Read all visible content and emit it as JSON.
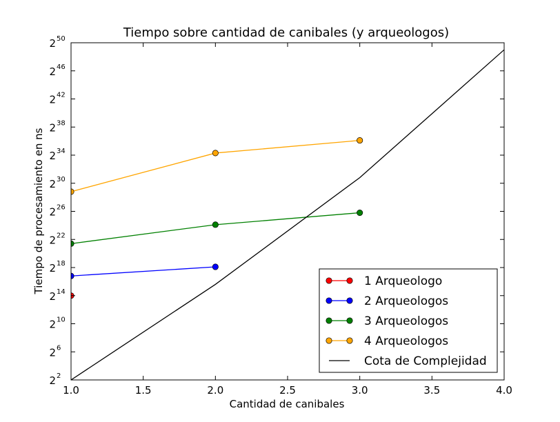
{
  "chart_data": {
    "type": "line",
    "title": "Tiempo sobre cantidad de canibales (y arqueologos)",
    "xlabel": "Cantidad de canibales",
    "ylabel": "Tiempo de procesamiento en ns",
    "y_scale": "log2",
    "xlim": [
      1.0,
      4.0
    ],
    "ylim_exponent": [
      2,
      50
    ],
    "x_ticks": [
      "1.0",
      "1.5",
      "2.0",
      "2.5",
      "3.0",
      "3.5",
      "4.0"
    ],
    "x_tick_values": [
      1.0,
      1.5,
      2.0,
      2.5,
      3.0,
      3.5,
      4.0
    ],
    "y_tick_base": "2",
    "y_tick_exponents": [
      "2",
      "6",
      "10",
      "14",
      "18",
      "22",
      "26",
      "30",
      "34",
      "38",
      "42",
      "46",
      "50"
    ],
    "grid": false,
    "legend_position": "lower-right",
    "series": [
      {
        "name": "1 Arqueologo",
        "color": "#ff0000",
        "marker": "circle",
        "x": [
          1.0
        ],
        "y_exponent": [
          14.0
        ]
      },
      {
        "name": "2 Arqueologos",
        "color": "#0000ff",
        "marker": "circle",
        "x": [
          1.0,
          2.0
        ],
        "y_exponent": [
          16.8,
          18.1
        ]
      },
      {
        "name": "3 Arqueologos",
        "color": "#008000",
        "marker": "circle",
        "x": [
          1.0,
          2.0,
          3.0
        ],
        "y_exponent": [
          21.4,
          24.1,
          25.8
        ]
      },
      {
        "name": "4 Arqueologos",
        "color": "#ffa500",
        "marker": "circle",
        "x": [
          1.0,
          2.0,
          3.0
        ],
        "y_exponent": [
          28.8,
          34.3,
          36.1
        ]
      },
      {
        "name": "Cota de Complejidad",
        "color": "#000000",
        "marker": "none",
        "x": [
          1.0,
          2.0,
          3.0,
          4.0
        ],
        "y_exponent": [
          2.0,
          15.6,
          30.8,
          49.0
        ]
      }
    ]
  }
}
